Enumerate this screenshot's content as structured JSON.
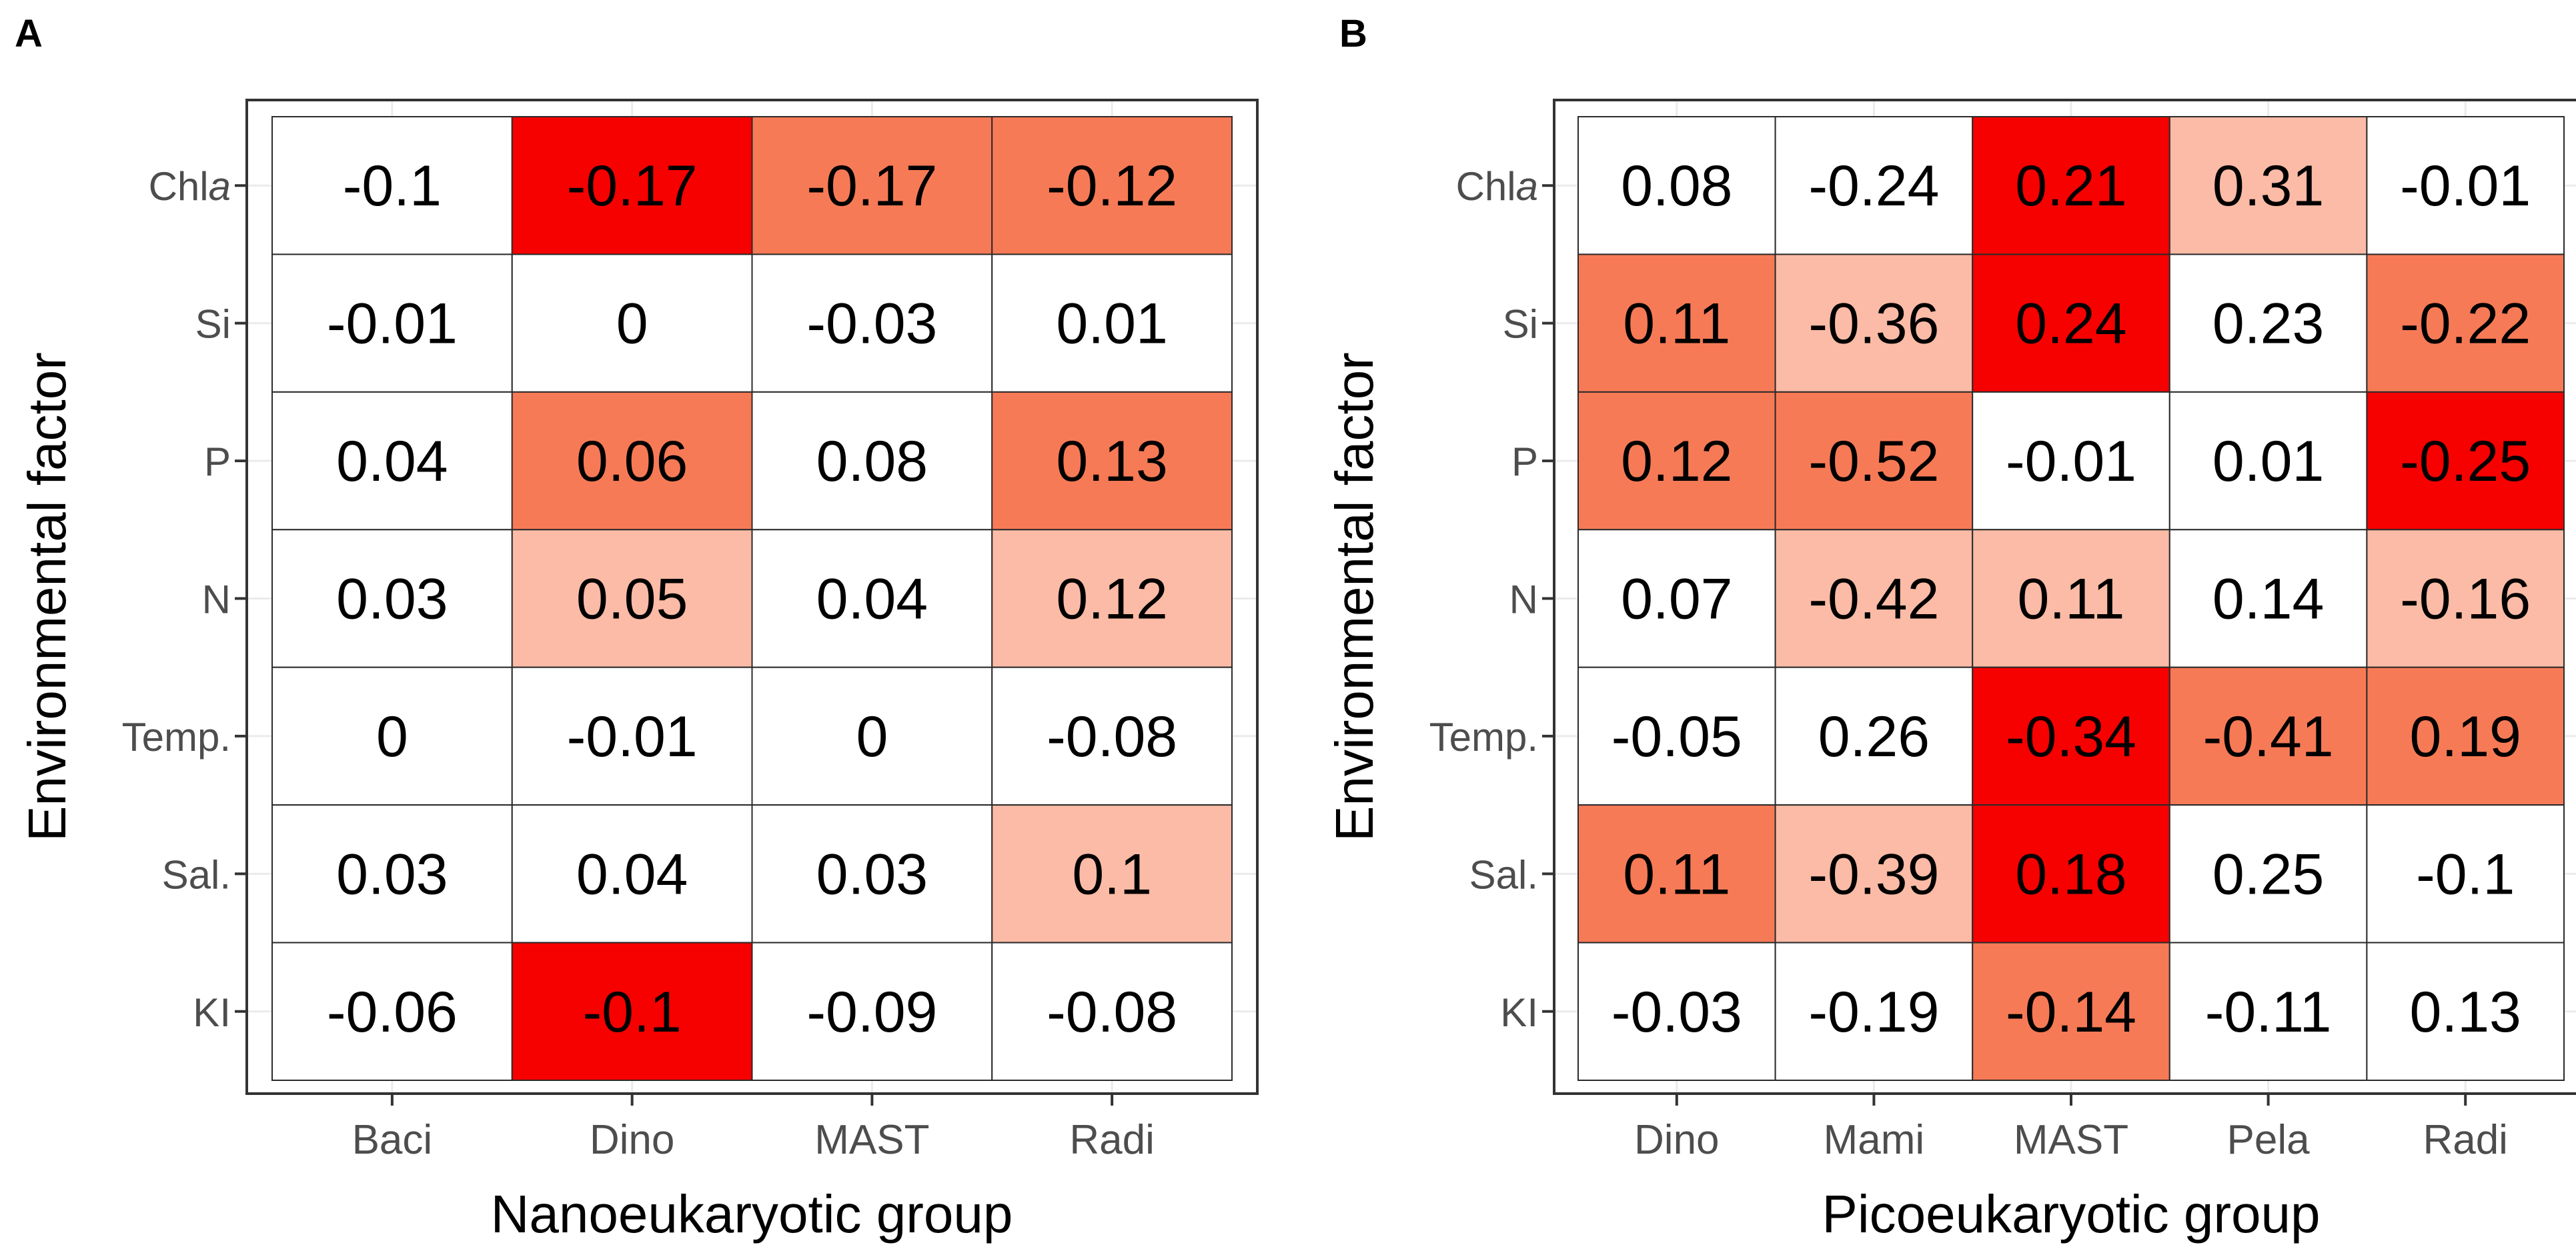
{
  "colors": {
    "none": "#ffffff",
    "light": "#fbbba6",
    "medium": "#f77a56",
    "strong": "#f70000",
    "grid_line": "#ebebeb",
    "text": "#000000",
    "tick_text": "#4d4d4d"
  },
  "chart_data": [
    {
      "type": "heatmap",
      "panel_label": "A",
      "xlabel": "Nanoeukaryotic group",
      "ylabel": "Environmental factor",
      "x_categories": [
        "Baci",
        "Dino",
        "MAST",
        "Radi"
      ],
      "y_categories": [
        {
          "label": "Chl",
          "italic_suffix": "a"
        },
        {
          "label": "Si"
        },
        {
          "label": "P"
        },
        {
          "label": "N"
        },
        {
          "label": "Temp."
        },
        {
          "label": "Sal."
        },
        {
          "label": "KI"
        }
      ],
      "values": [
        [
          "-0.1",
          "-0.17",
          "-0.17",
          "-0.12"
        ],
        [
          "-0.01",
          "0",
          "-0.03",
          "0.01"
        ],
        [
          "0.04",
          "0.06",
          "0.08",
          "0.13"
        ],
        [
          "0.03",
          "0.05",
          "0.04",
          "0.12"
        ],
        [
          "0",
          "-0.01",
          "0",
          "-0.08"
        ],
        [
          "0.03",
          "0.04",
          "0.03",
          "0.1"
        ],
        [
          "-0.06",
          "-0.1",
          "-0.09",
          "-0.08"
        ]
      ],
      "fill_levels": [
        [
          "none",
          "strong",
          "medium",
          "medium"
        ],
        [
          "none",
          "none",
          "none",
          "none"
        ],
        [
          "none",
          "medium",
          "none",
          "medium"
        ],
        [
          "none",
          "light",
          "none",
          "light"
        ],
        [
          "none",
          "none",
          "none",
          "none"
        ],
        [
          "none",
          "none",
          "none",
          "light"
        ],
        [
          "none",
          "strong",
          "none",
          "none"
        ]
      ]
    },
    {
      "type": "heatmap",
      "panel_label": "B",
      "xlabel": "Picoeukaryotic group",
      "ylabel": "Environmental factor",
      "x_categories": [
        "Dino",
        "Mami",
        "MAST",
        "Pela",
        "Radi"
      ],
      "y_categories": [
        {
          "label": "Chl",
          "italic_suffix": "a"
        },
        {
          "label": "Si"
        },
        {
          "label": "P"
        },
        {
          "label": "N"
        },
        {
          "label": "Temp."
        },
        {
          "label": "Sal."
        },
        {
          "label": "KI"
        }
      ],
      "values": [
        [
          "0.08",
          "-0.24",
          "0.21",
          "0.31",
          "-0.01"
        ],
        [
          "0.11",
          "-0.36",
          "0.24",
          "0.23",
          "-0.22"
        ],
        [
          "0.12",
          "-0.52",
          "-0.01",
          "0.01",
          "-0.25"
        ],
        [
          "0.07",
          "-0.42",
          "0.11",
          "0.14",
          "-0.16"
        ],
        [
          "-0.05",
          "0.26",
          "-0.34",
          "-0.41",
          "0.19"
        ],
        [
          "0.11",
          "-0.39",
          "0.18",
          "0.25",
          "-0.1"
        ],
        [
          "-0.03",
          "-0.19",
          "-0.14",
          "-0.11",
          "0.13"
        ]
      ],
      "fill_levels": [
        [
          "none",
          "none",
          "strong",
          "light",
          "none"
        ],
        [
          "medium",
          "light",
          "strong",
          "none",
          "medium"
        ],
        [
          "medium",
          "medium",
          "none",
          "none",
          "strong"
        ],
        [
          "none",
          "light",
          "light",
          "none",
          "light"
        ],
        [
          "none",
          "none",
          "strong",
          "medium",
          "medium"
        ],
        [
          "medium",
          "light",
          "strong",
          "none",
          "none"
        ],
        [
          "none",
          "none",
          "medium",
          "none",
          "none"
        ]
      ]
    }
  ]
}
